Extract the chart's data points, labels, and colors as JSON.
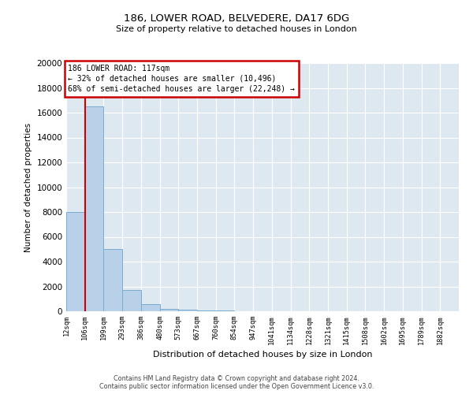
{
  "title1": "186, LOWER ROAD, BELVEDERE, DA17 6DG",
  "title2": "Size of property relative to detached houses in London",
  "xlabel": "Distribution of detached houses by size in London",
  "ylabel": "Number of detached properties",
  "bins": [
    "12sqm",
    "106sqm",
    "199sqm",
    "293sqm",
    "386sqm",
    "480sqm",
    "573sqm",
    "667sqm",
    "760sqm",
    "854sqm",
    "947sqm",
    "1041sqm",
    "1134sqm",
    "1228sqm",
    "1321sqm",
    "1415sqm",
    "1508sqm",
    "1602sqm",
    "1695sqm",
    "1789sqm",
    "1882sqm"
  ],
  "values": [
    8000,
    16500,
    5000,
    1700,
    600,
    200,
    100,
    50,
    50,
    10,
    0,
    0,
    0,
    0,
    0,
    0,
    0,
    0,
    0,
    0
  ],
  "bar_color": "#b8d0e8",
  "bar_edge_color": "#7aacce",
  "vline_x": 1,
  "vline_color": "#cc0000",
  "annotation_text": "186 LOWER ROAD: 117sqm\n← 32% of detached houses are smaller (10,496)\n68% of semi-detached houses are larger (22,248) →",
  "annotation_box_color": "white",
  "annotation_box_edge": "#cc0000",
  "ylim": [
    0,
    20000
  ],
  "yticks": [
    0,
    2000,
    4000,
    6000,
    8000,
    10000,
    12000,
    14000,
    16000,
    18000,
    20000
  ],
  "bg_color": "#dde8f0",
  "footer1": "Contains HM Land Registry data © Crown copyright and database right 2024.",
  "footer2": "Contains public sector information licensed under the Open Government Licence v3.0."
}
